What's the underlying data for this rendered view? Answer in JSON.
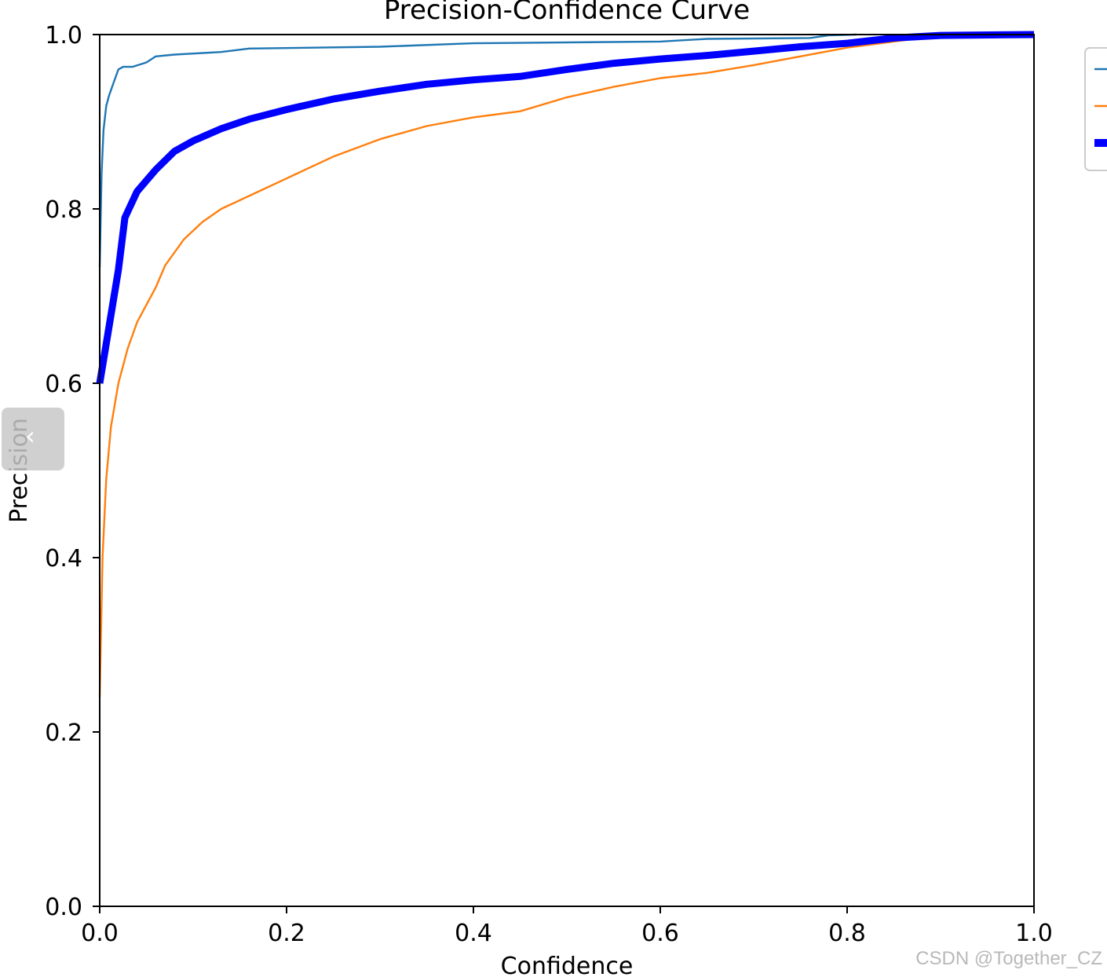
{
  "chart_data": {
    "type": "line",
    "title": "Precision-Confidence Curve",
    "xlabel": "Confidence",
    "ylabel": "Precision",
    "xlim": [
      0,
      1
    ],
    "ylim": [
      0,
      1
    ],
    "xticks": [
      "0.0",
      "0.2",
      "0.4",
      "0.6",
      "0.8",
      "1.0"
    ],
    "yticks": [
      "0.0",
      "0.2",
      "0.4",
      "0.6",
      "0.8",
      "1.0"
    ],
    "grid": false,
    "legend_position": "right, partially cut off",
    "series": [
      {
        "color": "#1f77b4",
        "width": "thin",
        "points": [
          [
            0.0,
            0.733
          ],
          [
            0.002,
            0.84
          ],
          [
            0.004,
            0.89
          ],
          [
            0.007,
            0.918
          ],
          [
            0.01,
            0.93
          ],
          [
            0.015,
            0.945
          ],
          [
            0.02,
            0.96
          ],
          [
            0.025,
            0.963
          ],
          [
            0.035,
            0.963
          ],
          [
            0.05,
            0.968
          ],
          [
            0.06,
            0.975
          ],
          [
            0.08,
            0.977
          ],
          [
            0.13,
            0.98
          ],
          [
            0.16,
            0.984
          ],
          [
            0.3,
            0.986
          ],
          [
            0.4,
            0.99
          ],
          [
            0.6,
            0.992
          ],
          [
            0.65,
            0.995
          ],
          [
            0.76,
            0.996
          ],
          [
            0.78,
            0.999
          ],
          [
            0.81,
            1.0
          ]
        ]
      },
      {
        "color": "#ff7f0e",
        "width": "thin",
        "points": [
          [
            0.0,
            0.24
          ],
          [
            0.003,
            0.4
          ],
          [
            0.007,
            0.49
          ],
          [
            0.012,
            0.55
          ],
          [
            0.02,
            0.6
          ],
          [
            0.03,
            0.64
          ],
          [
            0.04,
            0.67
          ],
          [
            0.05,
            0.69
          ],
          [
            0.06,
            0.71
          ],
          [
            0.07,
            0.735
          ],
          [
            0.09,
            0.765
          ],
          [
            0.11,
            0.785
          ],
          [
            0.13,
            0.8
          ],
          [
            0.16,
            0.815
          ],
          [
            0.2,
            0.835
          ],
          [
            0.25,
            0.86
          ],
          [
            0.3,
            0.88
          ],
          [
            0.35,
            0.895
          ],
          [
            0.4,
            0.905
          ],
          [
            0.45,
            0.912
          ],
          [
            0.5,
            0.928
          ],
          [
            0.55,
            0.94
          ],
          [
            0.6,
            0.95
          ],
          [
            0.65,
            0.956
          ],
          [
            0.7,
            0.965
          ],
          [
            0.75,
            0.975
          ],
          [
            0.8,
            0.985
          ],
          [
            0.85,
            0.992
          ],
          [
            0.9,
            0.999
          ],
          [
            1.0,
            1.0
          ]
        ]
      },
      {
        "color": "#0000ff",
        "width": "thick",
        "points": [
          [
            0.0,
            0.6
          ],
          [
            0.02,
            0.73
          ],
          [
            0.027,
            0.79
          ],
          [
            0.04,
            0.82
          ],
          [
            0.06,
            0.845
          ],
          [
            0.08,
            0.866
          ],
          [
            0.1,
            0.878
          ],
          [
            0.13,
            0.892
          ],
          [
            0.16,
            0.903
          ],
          [
            0.2,
            0.914
          ],
          [
            0.25,
            0.926
          ],
          [
            0.3,
            0.935
          ],
          [
            0.35,
            0.943
          ],
          [
            0.4,
            0.948
          ],
          [
            0.45,
            0.952
          ],
          [
            0.5,
            0.96
          ],
          [
            0.55,
            0.967
          ],
          [
            0.6,
            0.972
          ],
          [
            0.65,
            0.976
          ],
          [
            0.7,
            0.981
          ],
          [
            0.75,
            0.986
          ],
          [
            0.8,
            0.99
          ],
          [
            0.85,
            0.996
          ],
          [
            0.9,
            0.999
          ],
          [
            1.0,
            1.0
          ]
        ]
      }
    ]
  },
  "watermark": "CSDN @Together_CZ",
  "overlay": {
    "icon": "chevron-left-icon",
    "glyph": "‹"
  }
}
